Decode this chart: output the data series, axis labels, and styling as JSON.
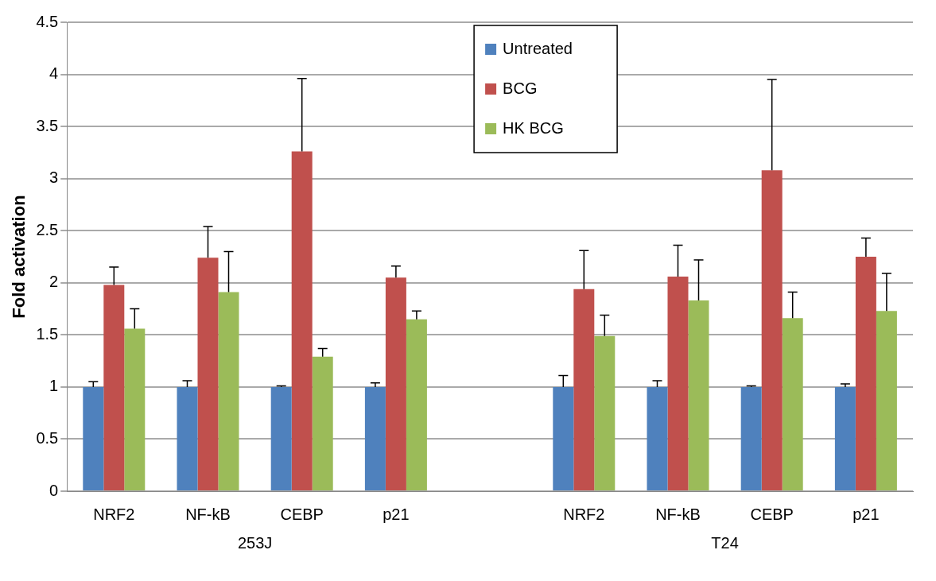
{
  "chart_data": {
    "type": "bar",
    "ylabel": "Fold activation",
    "categories": [
      "NRF2",
      "NF-kB",
      "CEBP",
      "p21",
      null,
      "NRF2",
      "NF-kB",
      "CEBP",
      "p21"
    ],
    "series": [
      {
        "name": "Untreated",
        "color": "#4f81bd",
        "values": [
          1,
          1,
          1,
          1,
          null,
          1,
          1,
          1,
          1
        ],
        "errors": [
          [
            1,
            1.05
          ],
          [
            1,
            1.06
          ],
          [
            1,
            1.01
          ],
          [
            1,
            1.04
          ],
          null,
          [
            1,
            1.11
          ],
          [
            1,
            1.06
          ],
          [
            1,
            1.01
          ],
          [
            1,
            1.03
          ]
        ]
      },
      {
        "name": "BCG",
        "color": "#c0504d",
        "values": [
          1.98,
          2.24,
          3.26,
          2.05,
          null,
          1.94,
          2.06,
          3.08,
          2.25
        ],
        "errors": [
          [
            1.98,
            2.15
          ],
          [
            2.24,
            2.54
          ],
          [
            3.26,
            3.96
          ],
          [
            2.05,
            2.16
          ],
          null,
          [
            1.94,
            2.31
          ],
          [
            2.06,
            2.36
          ],
          [
            3.08,
            3.95
          ],
          [
            2.25,
            2.43
          ]
        ]
      },
      {
        "name": "HK BCG",
        "color": "#9bbb59",
        "values": [
          1.56,
          1.91,
          1.29,
          1.65,
          null,
          1.49,
          1.83,
          1.66,
          1.73
        ],
        "errors": [
          [
            1.56,
            1.75
          ],
          [
            1.91,
            2.3
          ],
          [
            1.29,
            1.37
          ],
          [
            1.65,
            1.73
          ],
          null,
          [
            1.49,
            1.69
          ],
          [
            1.83,
            2.22
          ],
          [
            1.66,
            1.91
          ],
          [
            1.73,
            2.09
          ]
        ]
      }
    ],
    "ylim": [
      0,
      4.5
    ],
    "yticks": [
      0,
      0.5,
      1,
      1.5,
      2,
      2.5,
      3,
      3.5,
      4,
      4.5
    ],
    "grid": "y",
    "legend": "top",
    "annotations": [
      "253J",
      "T24"
    ]
  }
}
